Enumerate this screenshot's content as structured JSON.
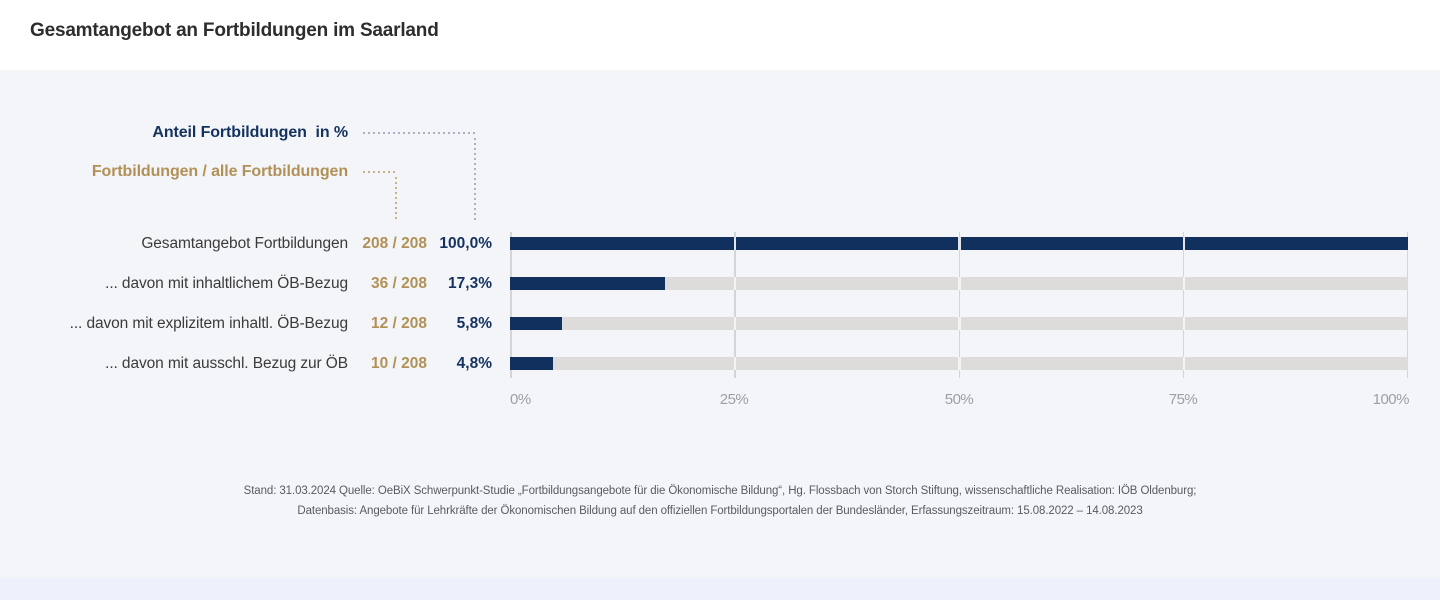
{
  "page": {
    "title": "Gesamtangebot an Fortbildungen im Saarland"
  },
  "legend": {
    "percent_label": "Anteil Fortbildungen  in %",
    "ratio_label": "Fortbildungen / alle Fortbildungen"
  },
  "chart_data": {
    "type": "bar",
    "orientation": "horizontal",
    "title": "Gesamtangebot an Fortbildungen im Saarland",
    "categories": [
      "Gesamtangebot Fortbildungen",
      "... davon mit inhaltlichem ÖB-Bezug",
      "... davon mit explizitem inhaltl. ÖB-Bezug",
      "... davon mit ausschl. Bezug zur ÖB"
    ],
    "values": [
      100.0,
      17.3,
      5.8,
      4.8
    ],
    "counts": [
      "208 / 208",
      "36 / 208",
      "12 / 208",
      "10 / 208"
    ],
    "value_labels": [
      "100,0%",
      "17,3%",
      "5,8%",
      "4,8%"
    ],
    "x_ticks": [
      "0%",
      "25%",
      "50%",
      "75%",
      "100%"
    ],
    "xlim": [
      0,
      100
    ],
    "grid": true,
    "legend_position": "top-left",
    "bar_color": "#12305e",
    "track_color": "#dddcda"
  },
  "footer": {
    "line1": "Stand: 31.03.2024 Quelle: OeBiX Schwerpunkt-Studie „Fortbildungsangebote für die Ökonomische Bildung“, Hg. Flossbach von Storch Stiftung, wissenschaftliche Realisation: IÖB Oldenburg;",
    "line2": "Datenbasis: Angebote für Lehrkräfte der Ökonomischen Bildung auf den offiziellen Fortbildungsportalen der Bundesländer, Erfassungszeitraum: 15.08.2022 – 14.08.2023"
  },
  "colors": {
    "accent_navy": "#12305e",
    "accent_tan": "#b19157",
    "panel_bg": "#f4f5f8",
    "bottom_strip": "#edf1fb",
    "gridline": "#d3d5d8",
    "track": "#dddcda",
    "axis_text": "#9aa0a6",
    "footer_text": "#575c62"
  }
}
